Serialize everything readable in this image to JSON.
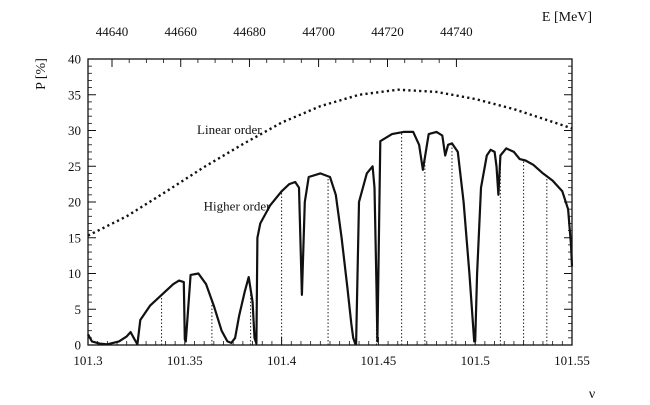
{
  "chart_data": {
    "type": "line",
    "xlabel": "ν",
    "ylabel": "P [%]",
    "top_axis_label": "E [MeV]",
    "xlim": [
      101.3,
      101.55
    ],
    "ylim": [
      0,
      40
    ],
    "x_ticks": [
      "101.3",
      "101.35",
      "101.4",
      "101.45",
      "101.5",
      "101.55"
    ],
    "y_ticks": [
      "0",
      "5",
      "10",
      "15",
      "20",
      "25",
      "30",
      "35",
      "40"
    ],
    "top_ticks": [
      {
        "label": "44640",
        "x": 101.3124
      },
      {
        "label": "44660",
        "x": 101.3479
      },
      {
        "label": "44680",
        "x": 101.3834
      },
      {
        "label": "44700",
        "x": 101.4191
      },
      {
        "label": "44720",
        "x": 101.4547
      },
      {
        "label": "44740",
        "x": 101.4903
      }
    ],
    "grid": false,
    "annotations": [
      {
        "text": "Linear order",
        "x": 101.373,
        "y": 29.5
      },
      {
        "text": "Higher order",
        "x": 101.377,
        "y": 18.8
      }
    ],
    "series": [
      {
        "style": "dotted",
        "x": [
          101.3,
          101.32,
          101.34,
          101.36,
          101.38,
          101.4,
          101.42,
          101.44,
          101.46,
          101.48,
          101.5,
          101.52,
          101.54,
          101.55
        ],
        "y": [
          15.3,
          18.0,
          21.4,
          24.9,
          28.1,
          31.1,
          33.4,
          35.0,
          35.7,
          35.4,
          34.4,
          33.0,
          31.2,
          30.3
        ]
      },
      {
        "style": "solid",
        "x": [
          101.3,
          101.302,
          101.306,
          101.31,
          101.316,
          101.32,
          101.322,
          101.324,
          101.3255,
          101.327,
          101.332,
          101.338,
          101.344,
          101.347,
          101.3495,
          101.35,
          101.3505,
          101.353,
          101.357,
          101.361,
          101.365,
          101.369,
          101.372,
          101.374,
          101.376,
          101.378,
          101.381,
          101.383,
          101.385,
          101.386,
          101.387,
          101.3875,
          101.389,
          101.394,
          101.4,
          101.404,
          101.407,
          101.409,
          101.4105,
          101.412,
          101.414,
          101.42,
          101.425,
          101.428,
          101.431,
          101.434,
          101.436,
          101.437,
          101.438,
          101.4385,
          101.44,
          101.444,
          101.447,
          101.448,
          101.449,
          101.4495,
          101.451,
          101.457,
          101.463,
          101.468,
          101.471,
          101.473,
          101.4745,
          101.476,
          101.48,
          101.483,
          101.4845,
          101.486,
          101.488,
          101.491,
          101.494,
          101.497,
          101.4995,
          101.5,
          101.501,
          101.503,
          101.506,
          101.508,
          101.51,
          101.511,
          101.512,
          101.513,
          101.516,
          101.52,
          101.523,
          101.526,
          101.53,
          101.535,
          101.54,
          101.545,
          101.548,
          101.5495,
          101.55
        ],
        "y": [
          1.5,
          0.5,
          0.2,
          0.1,
          0.5,
          1.2,
          1.8,
          0.8,
          0.1,
          3.5,
          5.5,
          7.0,
          8.5,
          9.0,
          8.8,
          0.8,
          0.5,
          9.8,
          10.0,
          8.5,
          5.5,
          2.0,
          0.5,
          0.3,
          1.0,
          4.0,
          7.5,
          9.5,
          6.0,
          1.0,
          0.2,
          15.0,
          17.0,
          19.5,
          21.5,
          22.5,
          22.8,
          22.0,
          7.0,
          20.0,
          23.5,
          24.0,
          23.5,
          21.0,
          15.0,
          8.0,
          3.0,
          1.0,
          0.2,
          0.2,
          20.0,
          24.0,
          25.0,
          22.0,
          8.0,
          0.5,
          28.5,
          29.5,
          29.8,
          29.8,
          28.0,
          24.5,
          27.0,
          29.5,
          29.8,
          29.3,
          26.5,
          28.0,
          28.2,
          27.0,
          20.0,
          10.0,
          0.5,
          0.5,
          10.0,
          22.0,
          26.5,
          27.3,
          27.0,
          25.0,
          21.0,
          26.5,
          27.5,
          27.0,
          26.0,
          25.8,
          25.2,
          24.0,
          23.0,
          21.5,
          19.0,
          14.0,
          11.0
        ]
      }
    ],
    "vlines_dotted": [
      101.338,
      101.364,
      101.384,
      101.4,
      101.424,
      101.438,
      101.449,
      101.462,
      101.474,
      101.488,
      101.5,
      101.513,
      101.525,
      101.537
    ]
  }
}
